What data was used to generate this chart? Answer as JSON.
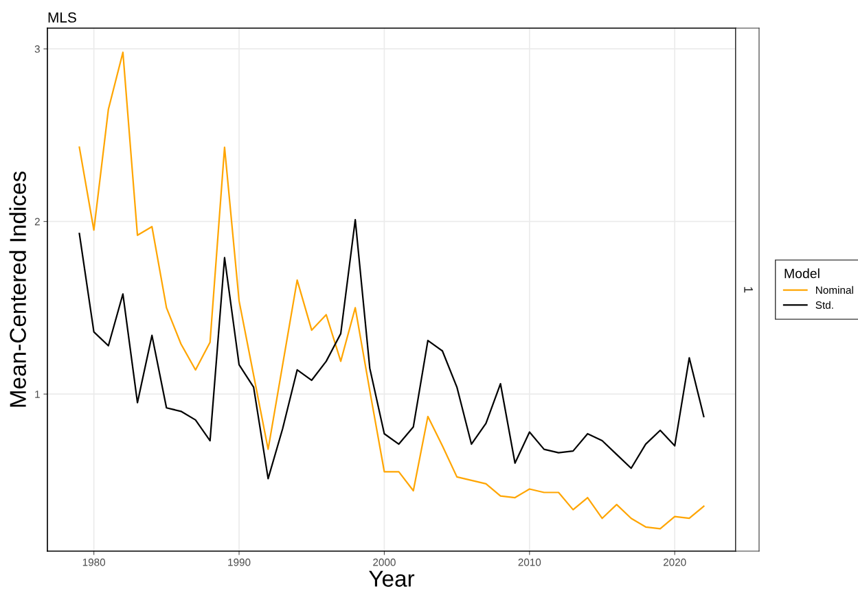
{
  "chart_data": {
    "type": "line",
    "title": "MLS",
    "xlabel": "Year",
    "ylabel": "Mean-Centered Indices",
    "legend_title": "Model",
    "x": [
      1979,
      1980,
      1981,
      1982,
      1983,
      1984,
      1985,
      1986,
      1987,
      1988,
      1989,
      1990,
      1991,
      1992,
      1993,
      1994,
      1995,
      1996,
      1997,
      1998,
      1999,
      2000,
      2001,
      2002,
      2003,
      2004,
      2005,
      2006,
      2007,
      2008,
      2009,
      2010,
      2011,
      2012,
      2013,
      2014,
      2015,
      2016,
      2017,
      2018,
      2019,
      2020,
      2021,
      2022
    ],
    "series": [
      {
        "name": "Nominal",
        "color": "#ffa500",
        "values": [
          2.43,
          1.95,
          2.65,
          2.98,
          1.92,
          1.97,
          1.5,
          1.29,
          1.14,
          1.3,
          2.43,
          1.54,
          1.11,
          0.68,
          1.17,
          1.66,
          1.37,
          1.46,
          1.19,
          1.5,
          1.02,
          0.55,
          0.55,
          0.44,
          0.87,
          0.7,
          0.52,
          0.5,
          0.48,
          0.41,
          0.4,
          0.45,
          0.43,
          0.43,
          0.33,
          0.4,
          0.28,
          0.36,
          0.28,
          0.23,
          0.22,
          0.29,
          0.28,
          0.35
        ]
      },
      {
        "name": "Std.",
        "color": "#000000",
        "values": [
          1.93,
          1.36,
          1.28,
          1.58,
          0.95,
          1.34,
          0.92,
          0.9,
          0.85,
          0.73,
          1.79,
          1.17,
          1.04,
          0.51,
          0.8,
          1.14,
          1.08,
          1.19,
          1.35,
          2.01,
          1.15,
          0.77,
          0.71,
          0.81,
          1.31,
          1.25,
          1.04,
          0.71,
          0.83,
          1.06,
          0.6,
          0.78,
          0.68,
          0.66,
          0.67,
          0.77,
          0.73,
          0.65,
          0.57,
          0.71,
          0.79,
          0.7,
          1.21,
          0.87
        ]
      }
    ],
    "xlim": [
      1976.8,
      2024.2
    ],
    "ylim": [
      0.09,
      3.12
    ],
    "xticks": [
      1980,
      1990,
      2000,
      2010,
      2020
    ],
    "yticks": [
      1,
      2,
      3
    ],
    "grid": true,
    "legend": "right",
    "annotations": [
      "1"
    ]
  }
}
